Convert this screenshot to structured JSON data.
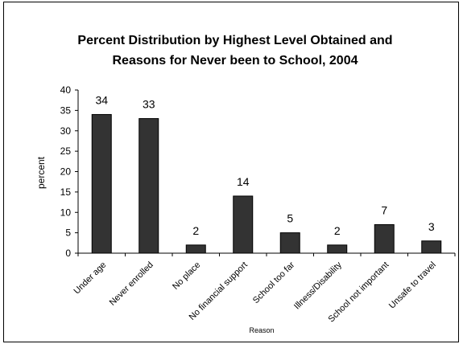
{
  "chart_data": {
    "type": "bar",
    "title": [
      "Percent Distribution by Highest Level Obtained and",
      "Reasons for Never been to School, 2004"
    ],
    "xlabel": "Reason",
    "ylabel": "percent",
    "categories": [
      "Under age",
      "Never enrolled",
      "No place",
      "No financial support",
      "School too far",
      "Illness/Disability",
      "School not important",
      "Unsafe to travel"
    ],
    "values": [
      34,
      33,
      2,
      14,
      5,
      2,
      7,
      3
    ],
    "ylim": [
      0,
      40
    ],
    "yticks": [
      0,
      5,
      10,
      15,
      20,
      25,
      30,
      35,
      40
    ],
    "grid": false,
    "legend": "none",
    "bar_color": "#333333"
  }
}
